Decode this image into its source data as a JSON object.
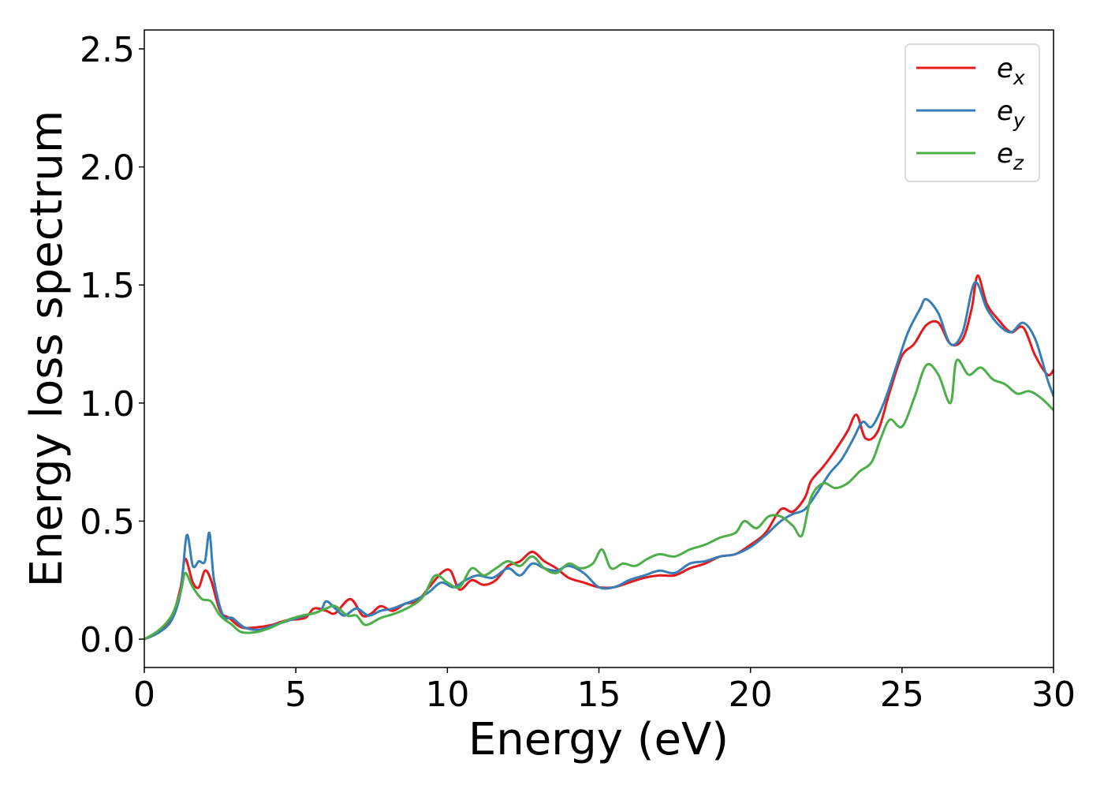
{
  "chart_data": {
    "type": "line",
    "title": "",
    "xlabel": "Energy (eV)",
    "ylabel": "Energy loss spectrum",
    "xlim": [
      0,
      30
    ],
    "ylim": [
      -0.12,
      2.58
    ],
    "xticks": [
      0,
      5,
      10,
      15,
      20,
      25,
      30
    ],
    "yticks": [
      0.0,
      0.5,
      1.0,
      1.5,
      2.0,
      2.5
    ],
    "xtick_labels": [
      "0",
      "5",
      "10",
      "15",
      "20",
      "25",
      "30"
    ],
    "ytick_labels": [
      "0.0",
      "0.5",
      "1.0",
      "1.5",
      "2.0",
      "2.5"
    ],
    "grid": false,
    "legend_position": "top-right",
    "series": [
      {
        "name": "e",
        "subscript": "x",
        "color": "#e41a1c",
        "points": [
          [
            0,
            0
          ],
          [
            0.5,
            0.03
          ],
          [
            0.9,
            0.09
          ],
          [
            1.2,
            0.22
          ],
          [
            1.35,
            0.34
          ],
          [
            1.6,
            0.24
          ],
          [
            1.8,
            0.22
          ],
          [
            2.0,
            0.29
          ],
          [
            2.2,
            0.25
          ],
          [
            2.5,
            0.12
          ],
          [
            2.8,
            0.09
          ],
          [
            3.2,
            0.05
          ],
          [
            3.7,
            0.05
          ],
          [
            4.2,
            0.06
          ],
          [
            4.7,
            0.08
          ],
          [
            5.3,
            0.09
          ],
          [
            5.6,
            0.13
          ],
          [
            6.0,
            0.12
          ],
          [
            6.3,
            0.11
          ],
          [
            6.8,
            0.17
          ],
          [
            7.2,
            0.1
          ],
          [
            7.5,
            0.11
          ],
          [
            7.8,
            0.14
          ],
          [
            8.2,
            0.12
          ],
          [
            8.6,
            0.15
          ],
          [
            9.0,
            0.16
          ],
          [
            9.4,
            0.22
          ],
          [
            9.8,
            0.28
          ],
          [
            10.1,
            0.29
          ],
          [
            10.4,
            0.21
          ],
          [
            10.8,
            0.25
          ],
          [
            11.2,
            0.23
          ],
          [
            11.6,
            0.25
          ],
          [
            12.0,
            0.31
          ],
          [
            12.4,
            0.33
          ],
          [
            12.8,
            0.37
          ],
          [
            13.2,
            0.33
          ],
          [
            13.6,
            0.3
          ],
          [
            14.0,
            0.26
          ],
          [
            14.5,
            0.24
          ],
          [
            15.0,
            0.22
          ],
          [
            15.5,
            0.22
          ],
          [
            16.0,
            0.24
          ],
          [
            16.5,
            0.26
          ],
          [
            17.0,
            0.27
          ],
          [
            17.5,
            0.27
          ],
          [
            18.0,
            0.3
          ],
          [
            18.5,
            0.32
          ],
          [
            19.0,
            0.35
          ],
          [
            19.5,
            0.36
          ],
          [
            20.0,
            0.4
          ],
          [
            20.5,
            0.45
          ],
          [
            21.0,
            0.55
          ],
          [
            21.4,
            0.54
          ],
          [
            21.8,
            0.6
          ],
          [
            22.0,
            0.67
          ],
          [
            22.4,
            0.73
          ],
          [
            22.8,
            0.8
          ],
          [
            23.2,
            0.88
          ],
          [
            23.5,
            0.95
          ],
          [
            23.8,
            0.85
          ],
          [
            24.2,
            0.88
          ],
          [
            24.6,
            1.05
          ],
          [
            25.0,
            1.2
          ],
          [
            25.4,
            1.25
          ],
          [
            25.8,
            1.33
          ],
          [
            26.2,
            1.34
          ],
          [
            26.6,
            1.25
          ],
          [
            27.0,
            1.27
          ],
          [
            27.3,
            1.4
          ],
          [
            27.5,
            1.54
          ],
          [
            27.8,
            1.42
          ],
          [
            28.2,
            1.35
          ],
          [
            28.6,
            1.3
          ],
          [
            29.0,
            1.32
          ],
          [
            29.4,
            1.2
          ],
          [
            29.8,
            1.12
          ],
          [
            30.0,
            1.14
          ]
        ]
      },
      {
        "name": "e",
        "subscript": "y",
        "color": "#377eb8",
        "points": [
          [
            0,
            0
          ],
          [
            0.5,
            0.03
          ],
          [
            0.9,
            0.08
          ],
          [
            1.2,
            0.2
          ],
          [
            1.4,
            0.44
          ],
          [
            1.6,
            0.31
          ],
          [
            1.8,
            0.33
          ],
          [
            2.0,
            0.33
          ],
          [
            2.15,
            0.45
          ],
          [
            2.3,
            0.25
          ],
          [
            2.6,
            0.1
          ],
          [
            2.9,
            0.09
          ],
          [
            3.3,
            0.05
          ],
          [
            3.8,
            0.04
          ],
          [
            4.3,
            0.06
          ],
          [
            4.8,
            0.08
          ],
          [
            5.3,
            0.1
          ],
          [
            5.8,
            0.12
          ],
          [
            6.0,
            0.16
          ],
          [
            6.3,
            0.13
          ],
          [
            6.6,
            0.1
          ],
          [
            7.0,
            0.13
          ],
          [
            7.4,
            0.1
          ],
          [
            7.8,
            0.12
          ],
          [
            8.2,
            0.13
          ],
          [
            8.6,
            0.15
          ],
          [
            9.0,
            0.17
          ],
          [
            9.4,
            0.2
          ],
          [
            9.8,
            0.24
          ],
          [
            10.2,
            0.22
          ],
          [
            10.6,
            0.25
          ],
          [
            11.0,
            0.27
          ],
          [
            11.5,
            0.26
          ],
          [
            12.0,
            0.3
          ],
          [
            12.4,
            0.27
          ],
          [
            12.8,
            0.32
          ],
          [
            13.2,
            0.3
          ],
          [
            13.6,
            0.29
          ],
          [
            14.0,
            0.31
          ],
          [
            14.5,
            0.28
          ],
          [
            15.0,
            0.22
          ],
          [
            15.5,
            0.22
          ],
          [
            16.0,
            0.25
          ],
          [
            16.5,
            0.27
          ],
          [
            17.0,
            0.29
          ],
          [
            17.5,
            0.28
          ],
          [
            18.0,
            0.32
          ],
          [
            18.5,
            0.33
          ],
          [
            19.0,
            0.35
          ],
          [
            19.5,
            0.36
          ],
          [
            20.0,
            0.39
          ],
          [
            20.5,
            0.44
          ],
          [
            21.0,
            0.5
          ],
          [
            21.4,
            0.53
          ],
          [
            21.8,
            0.55
          ],
          [
            22.2,
            0.62
          ],
          [
            22.6,
            0.7
          ],
          [
            23.0,
            0.76
          ],
          [
            23.4,
            0.85
          ],
          [
            23.7,
            0.92
          ],
          [
            24.0,
            0.9
          ],
          [
            24.4,
            1.0
          ],
          [
            24.8,
            1.15
          ],
          [
            25.2,
            1.3
          ],
          [
            25.6,
            1.4
          ],
          [
            25.8,
            1.44
          ],
          [
            26.2,
            1.38
          ],
          [
            26.6,
            1.25
          ],
          [
            27.0,
            1.3
          ],
          [
            27.4,
            1.51
          ],
          [
            27.8,
            1.4
          ],
          [
            28.2,
            1.33
          ],
          [
            28.6,
            1.3
          ],
          [
            29.0,
            1.34
          ],
          [
            29.4,
            1.27
          ],
          [
            29.8,
            1.1
          ],
          [
            30.0,
            1.03
          ]
        ]
      },
      {
        "name": "e",
        "subscript": "z",
        "color": "#4daf4a",
        "points": [
          [
            0,
            0
          ],
          [
            0.5,
            0.04
          ],
          [
            0.9,
            0.1
          ],
          [
            1.2,
            0.2
          ],
          [
            1.35,
            0.28
          ],
          [
            1.6,
            0.22
          ],
          [
            1.9,
            0.17
          ],
          [
            2.2,
            0.16
          ],
          [
            2.5,
            0.1
          ],
          [
            2.9,
            0.06
          ],
          [
            3.2,
            0.03
          ],
          [
            3.7,
            0.03
          ],
          [
            4.2,
            0.05
          ],
          [
            4.7,
            0.08
          ],
          [
            5.2,
            0.1
          ],
          [
            5.6,
            0.11
          ],
          [
            6.0,
            0.13
          ],
          [
            6.3,
            0.14
          ],
          [
            6.7,
            0.1
          ],
          [
            7.0,
            0.1
          ],
          [
            7.3,
            0.06
          ],
          [
            7.8,
            0.09
          ],
          [
            8.3,
            0.11
          ],
          [
            8.8,
            0.14
          ],
          [
            9.2,
            0.18
          ],
          [
            9.6,
            0.27
          ],
          [
            10.0,
            0.24
          ],
          [
            10.4,
            0.22
          ],
          [
            10.8,
            0.3
          ],
          [
            11.2,
            0.27
          ],
          [
            11.6,
            0.3
          ],
          [
            12.0,
            0.33
          ],
          [
            12.4,
            0.31
          ],
          [
            12.8,
            0.35
          ],
          [
            13.2,
            0.3
          ],
          [
            13.6,
            0.28
          ],
          [
            14.0,
            0.32
          ],
          [
            14.4,
            0.3
          ],
          [
            14.8,
            0.32
          ],
          [
            15.1,
            0.38
          ],
          [
            15.4,
            0.3
          ],
          [
            15.8,
            0.32
          ],
          [
            16.2,
            0.31
          ],
          [
            16.6,
            0.34
          ],
          [
            17.0,
            0.36
          ],
          [
            17.5,
            0.35
          ],
          [
            18.0,
            0.38
          ],
          [
            18.5,
            0.4
          ],
          [
            19.0,
            0.43
          ],
          [
            19.5,
            0.45
          ],
          [
            19.8,
            0.5
          ],
          [
            20.2,
            0.47
          ],
          [
            20.6,
            0.52
          ],
          [
            21.0,
            0.52
          ],
          [
            21.4,
            0.48
          ],
          [
            21.7,
            0.44
          ],
          [
            22.0,
            0.6
          ],
          [
            22.4,
            0.66
          ],
          [
            22.8,
            0.64
          ],
          [
            23.2,
            0.66
          ],
          [
            23.6,
            0.71
          ],
          [
            24.0,
            0.75
          ],
          [
            24.3,
            0.85
          ],
          [
            24.6,
            0.93
          ],
          [
            25.0,
            0.9
          ],
          [
            25.4,
            1.02
          ],
          [
            25.8,
            1.16
          ],
          [
            26.2,
            1.12
          ],
          [
            26.6,
            1.0
          ],
          [
            26.8,
            1.18
          ],
          [
            27.2,
            1.12
          ],
          [
            27.6,
            1.15
          ],
          [
            28.0,
            1.1
          ],
          [
            28.4,
            1.08
          ],
          [
            28.8,
            1.04
          ],
          [
            29.2,
            1.05
          ],
          [
            29.6,
            1.02
          ],
          [
            30.0,
            0.97
          ]
        ]
      }
    ]
  }
}
